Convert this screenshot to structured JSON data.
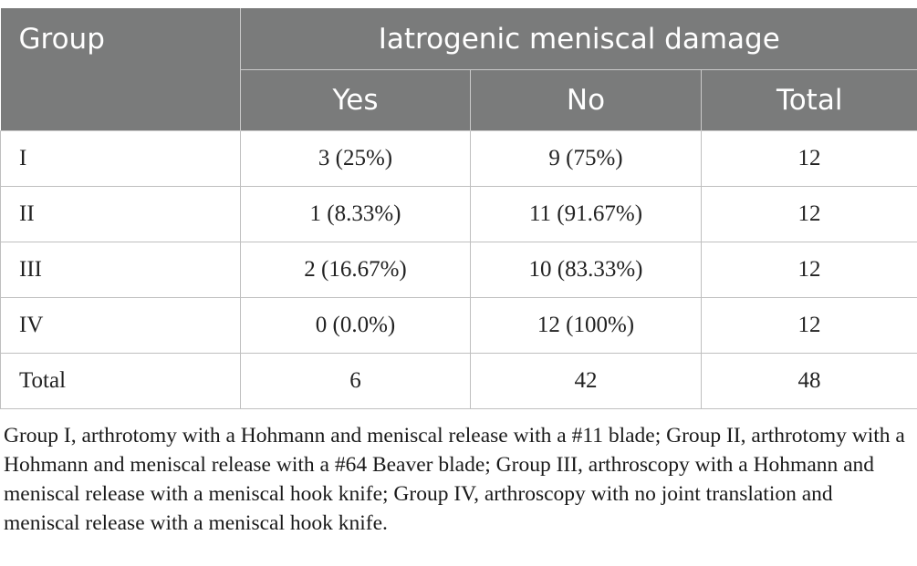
{
  "table": {
    "header": {
      "group_label": "Group",
      "span_label": "Iatrogenic meniscal damage",
      "sub_columns": [
        "Yes",
        "No",
        "Total"
      ]
    },
    "rows": [
      {
        "group": "I",
        "yes": "3 (25%)",
        "no": "9 (75%)",
        "total": "12"
      },
      {
        "group": "II",
        "yes": "1 (8.33%)",
        "no": "11 (91.67%)",
        "total": "12"
      },
      {
        "group": "III",
        "yes": "2 (16.67%)",
        "no": "10 (83.33%)",
        "total": "12"
      },
      {
        "group": "IV",
        "yes": "0 (0.0%)",
        "no": "12 (100%)",
        "total": "12"
      },
      {
        "group": "Total",
        "yes": "6",
        "no": "42",
        "total": "48"
      }
    ],
    "header_color": "#7a7b7b"
  },
  "footnote": "Group I, arthrotomy with a Hohmann and meniscal release with a #11 blade; Group II, arthrotomy with a Hohmann and meniscal release with a #64 Beaver blade; Group III, arthroscopy with a Hohmann and meniscal release with a meniscal hook knife; Group IV, arthroscopy with no joint translation and meniscal release with a meniscal hook knife."
}
